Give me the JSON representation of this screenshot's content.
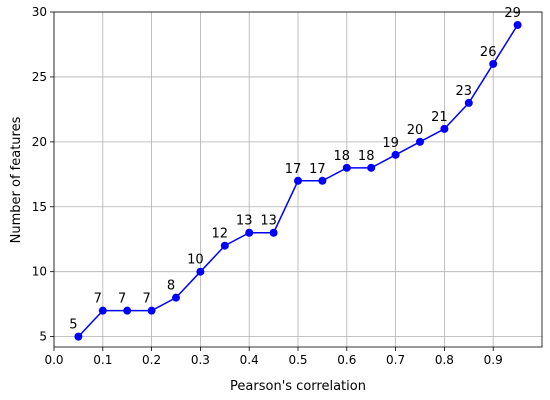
{
  "chart_data": {
    "type": "line",
    "title": "",
    "xlabel": "Pearson's correlation",
    "ylabel": "Number of features",
    "xlim": [
      0.0,
      1.0
    ],
    "ylim": [
      4.2,
      30.0
    ],
    "xticks": [
      0.0,
      0.1,
      0.2,
      0.3,
      0.4,
      0.5,
      0.6,
      0.7,
      0.8,
      0.9
    ],
    "xtick_labels": [
      "0.0",
      "0.1",
      "0.2",
      "0.3",
      "0.4",
      "0.5",
      "0.6",
      "0.7",
      "0.8",
      "0.9"
    ],
    "yticks": [
      5,
      10,
      15,
      20,
      25,
      30
    ],
    "ytick_labels": [
      "5",
      "10",
      "15",
      "20",
      "25",
      "30"
    ],
    "grid": true,
    "series": [
      {
        "color": "#0000ff",
        "marker": "circle",
        "x": [
          0.05,
          0.1,
          0.15,
          0.2,
          0.25,
          0.3,
          0.35,
          0.4,
          0.45,
          0.5,
          0.55,
          0.6,
          0.65,
          0.7,
          0.75,
          0.8,
          0.85,
          0.9,
          0.95
        ],
        "y": [
          5,
          7,
          7,
          7,
          8,
          10,
          12,
          13,
          13,
          17,
          17,
          18,
          18,
          19,
          20,
          21,
          23,
          26,
          29
        ],
        "data_labels": [
          "5",
          "7",
          "7",
          "7",
          "8",
          "10",
          "12",
          "13",
          "13",
          "17",
          "17",
          "18",
          "18",
          "19",
          "20",
          "21",
          "23",
          "26",
          "29"
        ]
      }
    ]
  }
}
